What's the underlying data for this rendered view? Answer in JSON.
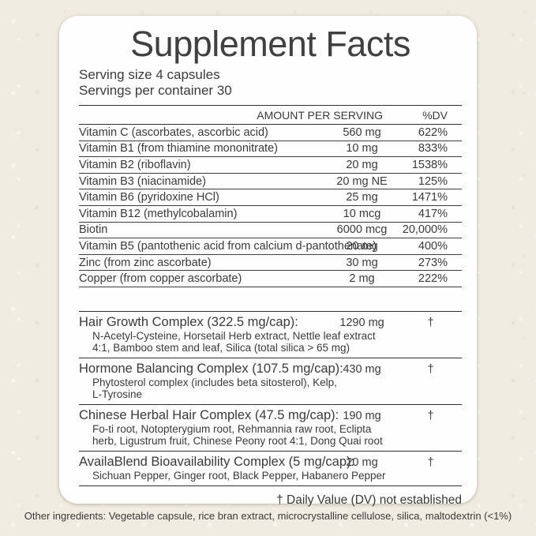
{
  "label": {
    "title": "Supplement Facts",
    "serving_size": "Serving size 4 capsules",
    "servings_per_container": "Servings per container 30",
    "columns": {
      "amount": "AMOUNT PER SERVING",
      "dv": "%DV"
    },
    "nutrients": [
      {
        "name": "Vitamin C (ascorbates, ascorbic acid)",
        "amount": "560 mg",
        "dv": "622%"
      },
      {
        "name": "Vitamin B1 (from thiamine mononitrate)",
        "amount": "10 mg",
        "dv": "833%"
      },
      {
        "name": "Vitamin B2 (riboflavin)",
        "amount": "20 mg",
        "dv": "1538%"
      },
      {
        "name": "Vitamin B3 (niacinamide)",
        "amount": "20 mg NE",
        "dv": "125%"
      },
      {
        "name": "Vitamin B6 (pyridoxine HCl)",
        "amount": "25 mg",
        "dv": "1471%"
      },
      {
        "name": "Vitamin B12 (methylcobalamin)",
        "amount": "10 mcg",
        "dv": "417%"
      },
      {
        "name": "Biotin",
        "amount": "6000 mcg",
        "dv": "20,000%"
      },
      {
        "name": "Vitamin B5 (pantothenic acid from calcium d-pantothenate)",
        "amount": "20 mg",
        "dv": "400%"
      },
      {
        "name": "Zinc (from zinc ascorbate)",
        "amount": "30 mg",
        "dv": "273%"
      },
      {
        "name": "Copper (from copper ascorbate)",
        "amount": "2 mg",
        "dv": "222%"
      }
    ],
    "complexes": [
      {
        "name": "Hair Growth Complex (322.5 mg/cap):",
        "amount": "1290 mg",
        "dv": "†",
        "ingredients": "N-Acetyl-Cysteine, Horsetail Herb extract, Nettle leaf extract\n4:1, Bamboo stem and leaf, Silica (total silica > 65 mg)"
      },
      {
        "name": "Hormone Balancing Complex (107.5 mg/cap):",
        "amount": "430 mg",
        "dv": "†",
        "ingredients": "Phytosterol complex (includes beta sitosterol), Kelp,\nL-Tyrosine"
      },
      {
        "name": "Chinese Herbal Hair Complex (47.5 mg/cap):",
        "amount": "190 mg",
        "dv": "†",
        "ingredients": "Fo-ti root, Notopterygium root, Rehmannia raw root, Eclipta\nherb, Ligustrum fruit, Chinese Peony root 4:1, Dong Quai root"
      },
      {
        "name": "AvailaBlend  Bioavailability Complex (5 mg/cap):",
        "amount": "20 mg",
        "dv": "†",
        "ingredients": "Sichuan Pepper, Ginger root, Black Pepper, Habanero Pepper"
      }
    ],
    "footnote": "† Daily Value (DV) not established"
  },
  "other_ingredients": "Other ingredients:  Vegetable capsule, rice bran extract, microcrystalline cellulose, silica, maltodextrin (<1%)",
  "colors": {
    "background": "#f1ece1",
    "card": "#fefefe",
    "text": "#3a3a3a",
    "line": "#2e2e2e"
  }
}
